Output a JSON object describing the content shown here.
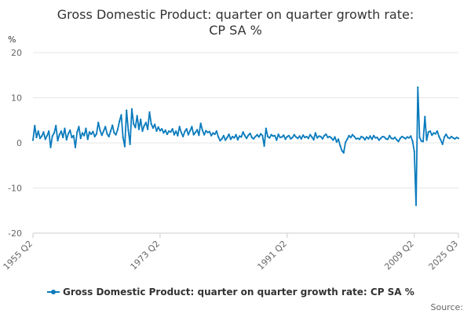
{
  "chart_data": {
    "type": "line",
    "title_lines": [
      "Gross Domestic Product: quarter on quarter growth rate:",
      "CP SA %"
    ],
    "ylabel": "%",
    "xlabel": "",
    "ylim": [
      -20,
      20
    ],
    "yticks": [
      "20",
      "10",
      "0",
      "-10",
      "-20"
    ],
    "ytick_values": [
      20,
      10,
      0,
      -10,
      -20
    ],
    "xticks": [
      "1955 Q2",
      "1973 Q2",
      "1991 Q2",
      "2009 Q2",
      "2025 Q3"
    ],
    "grid": true,
    "legend_position": "bottom",
    "source_label": "Source:",
    "series": [
      {
        "name": "Gross Domestic Product: quarter on quarter growth rate: CP SA %",
        "color": "#0a7bbd",
        "x_start": "1955 Q2",
        "x_end": "2025 Q3",
        "values": [
          0.6,
          3.8,
          1.2,
          2.6,
          1.0,
          1.5,
          2.4,
          0.8,
          1.6,
          2.6,
          -1.0,
          1.5,
          2.2,
          3.8,
          0.5,
          1.8,
          2.6,
          1.2,
          3.2,
          0.7,
          2.0,
          2.8,
          1.2,
          1.6,
          -1.0,
          2.4,
          3.6,
          1.0,
          2.2,
          1.6,
          3.2,
          0.8,
          2.4,
          1.9,
          2.5,
          1.4,
          2.0,
          4.5,
          2.8,
          1.7,
          2.6,
          3.6,
          2.0,
          1.4,
          2.6,
          3.9,
          2.2,
          1.8,
          3.0,
          4.8,
          6.2,
          1.2,
          -0.8,
          7.2,
          2.8,
          -0.3,
          7.5,
          4.2,
          3.4,
          6.0,
          3.0,
          5.2,
          2.6,
          3.8,
          4.5,
          3.0,
          6.8,
          4.2,
          3.3,
          4.1,
          2.6,
          3.5,
          2.7,
          3.1,
          2.2,
          2.8,
          1.9,
          2.6,
          2.4,
          3.1,
          1.8,
          2.6,
          1.6,
          3.6,
          2.3,
          1.4,
          2.5,
          3.1,
          1.8,
          2.7,
          3.6,
          1.8,
          2.3,
          2.9,
          1.7,
          4.3,
          2.8,
          1.8,
          2.7,
          2.3,
          2.5,
          1.6,
          2.2,
          1.9,
          2.6,
          1.3,
          0.5,
          0.9,
          1.6,
          0.6,
          1.2,
          1.9,
          0.8,
          1.4,
          1.1,
          1.8,
          0.7,
          1.5,
          1.3,
          2.4,
          1.6,
          1.0,
          1.7,
          2.1,
          1.2,
          0.9,
          1.4,
          1.8,
          1.3,
          2.0,
          1.6,
          -0.7,
          3.2,
          1.4,
          1.1,
          1.8,
          1.5,
          1.6,
          0.6,
          1.9,
          1.2,
          1.3,
          1.7,
          0.8,
          1.4,
          1.6,
          0.9,
          1.2,
          1.8,
          1.3,
          1.0,
          1.5,
          0.9,
          1.7,
          1.2,
          1.4,
          1.0,
          1.8,
          1.3,
          0.7,
          2.2,
          1.1,
          1.5,
          1.4,
          0.9,
          1.6,
          1.9,
          1.2,
          1.4,
          1.1,
          0.6,
          1.3,
          0.2,
          0.8,
          -0.6,
          -1.7,
          -2.2,
          0.1,
          0.8,
          1.6,
          1.2,
          1.8,
          1.4,
          0.9,
          1.0,
          0.8,
          1.4,
          1.2,
          0.7,
          1.3,
          0.9,
          1.5,
          0.8,
          1.6,
          1.1,
          1.2,
          0.6,
          1.0,
          1.4,
          1.3,
          0.9,
          0.8,
          1.6,
          1.0,
          0.9,
          1.2,
          0.7,
          0.3,
          1.0,
          1.4,
          1.2,
          0.9,
          1.3,
          1.1,
          1.5,
          0.4,
          -1.9,
          -13.8,
          12.3,
          1.2,
          0.4,
          0.3,
          5.8,
          0.6,
          2.4,
          2.6,
          1.7,
          2.2,
          2.0,
          2.6,
          1.4,
          0.6,
          -0.3,
          1.3,
          1.9,
          1.2,
          1.0,
          1.4,
          1.1,
          0.9,
          1.2,
          1.0
        ]
      }
    ]
  }
}
